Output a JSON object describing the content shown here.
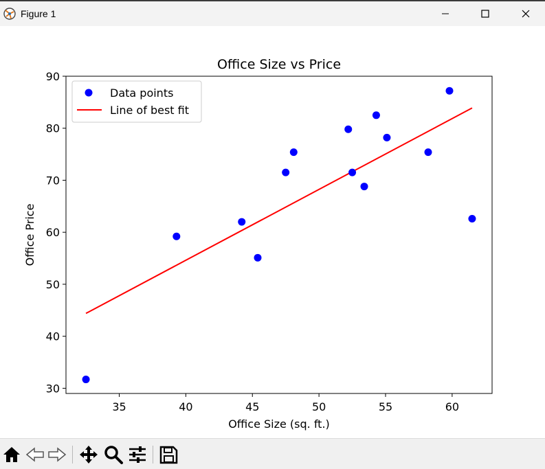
{
  "window": {
    "title": "Figure 1"
  },
  "chart_data": {
    "type": "scatter",
    "title": "Office Size vs Price",
    "xlabel": "Office Size (sq. ft.)",
    "ylabel": "Office Price",
    "xlim": [
      31,
      63
    ],
    "ylim": [
      29,
      90
    ],
    "xticks": [
      35,
      40,
      45,
      50,
      55,
      60
    ],
    "yticks": [
      30,
      40,
      50,
      60,
      70,
      80,
      90
    ],
    "grid": false,
    "legend_position": "top-left",
    "series": [
      {
        "name": "Data points",
        "kind": "scatter",
        "color": "#0000ff",
        "x": [
          32.5,
          39.3,
          44.2,
          45.4,
          47.5,
          48.1,
          52.2,
          52.5,
          53.4,
          54.3,
          55.1,
          58.2,
          59.8,
          61.5
        ],
        "y": [
          31.7,
          59.2,
          62.0,
          55.1,
          71.5,
          75.4,
          79.8,
          71.5,
          68.8,
          82.5,
          78.2,
          75.4,
          87.2,
          62.6
        ]
      },
      {
        "name": "Line of best fit",
        "kind": "line",
        "color": "#ff0000",
        "x": [
          32.5,
          61.5
        ],
        "y": [
          44.4,
          83.9
        ]
      }
    ]
  },
  "toolbar": {
    "tools": [
      "home-icon",
      "back-icon",
      "forward-icon",
      "pan-icon",
      "zoom-icon",
      "configure-subplots-icon",
      "save-icon"
    ]
  }
}
